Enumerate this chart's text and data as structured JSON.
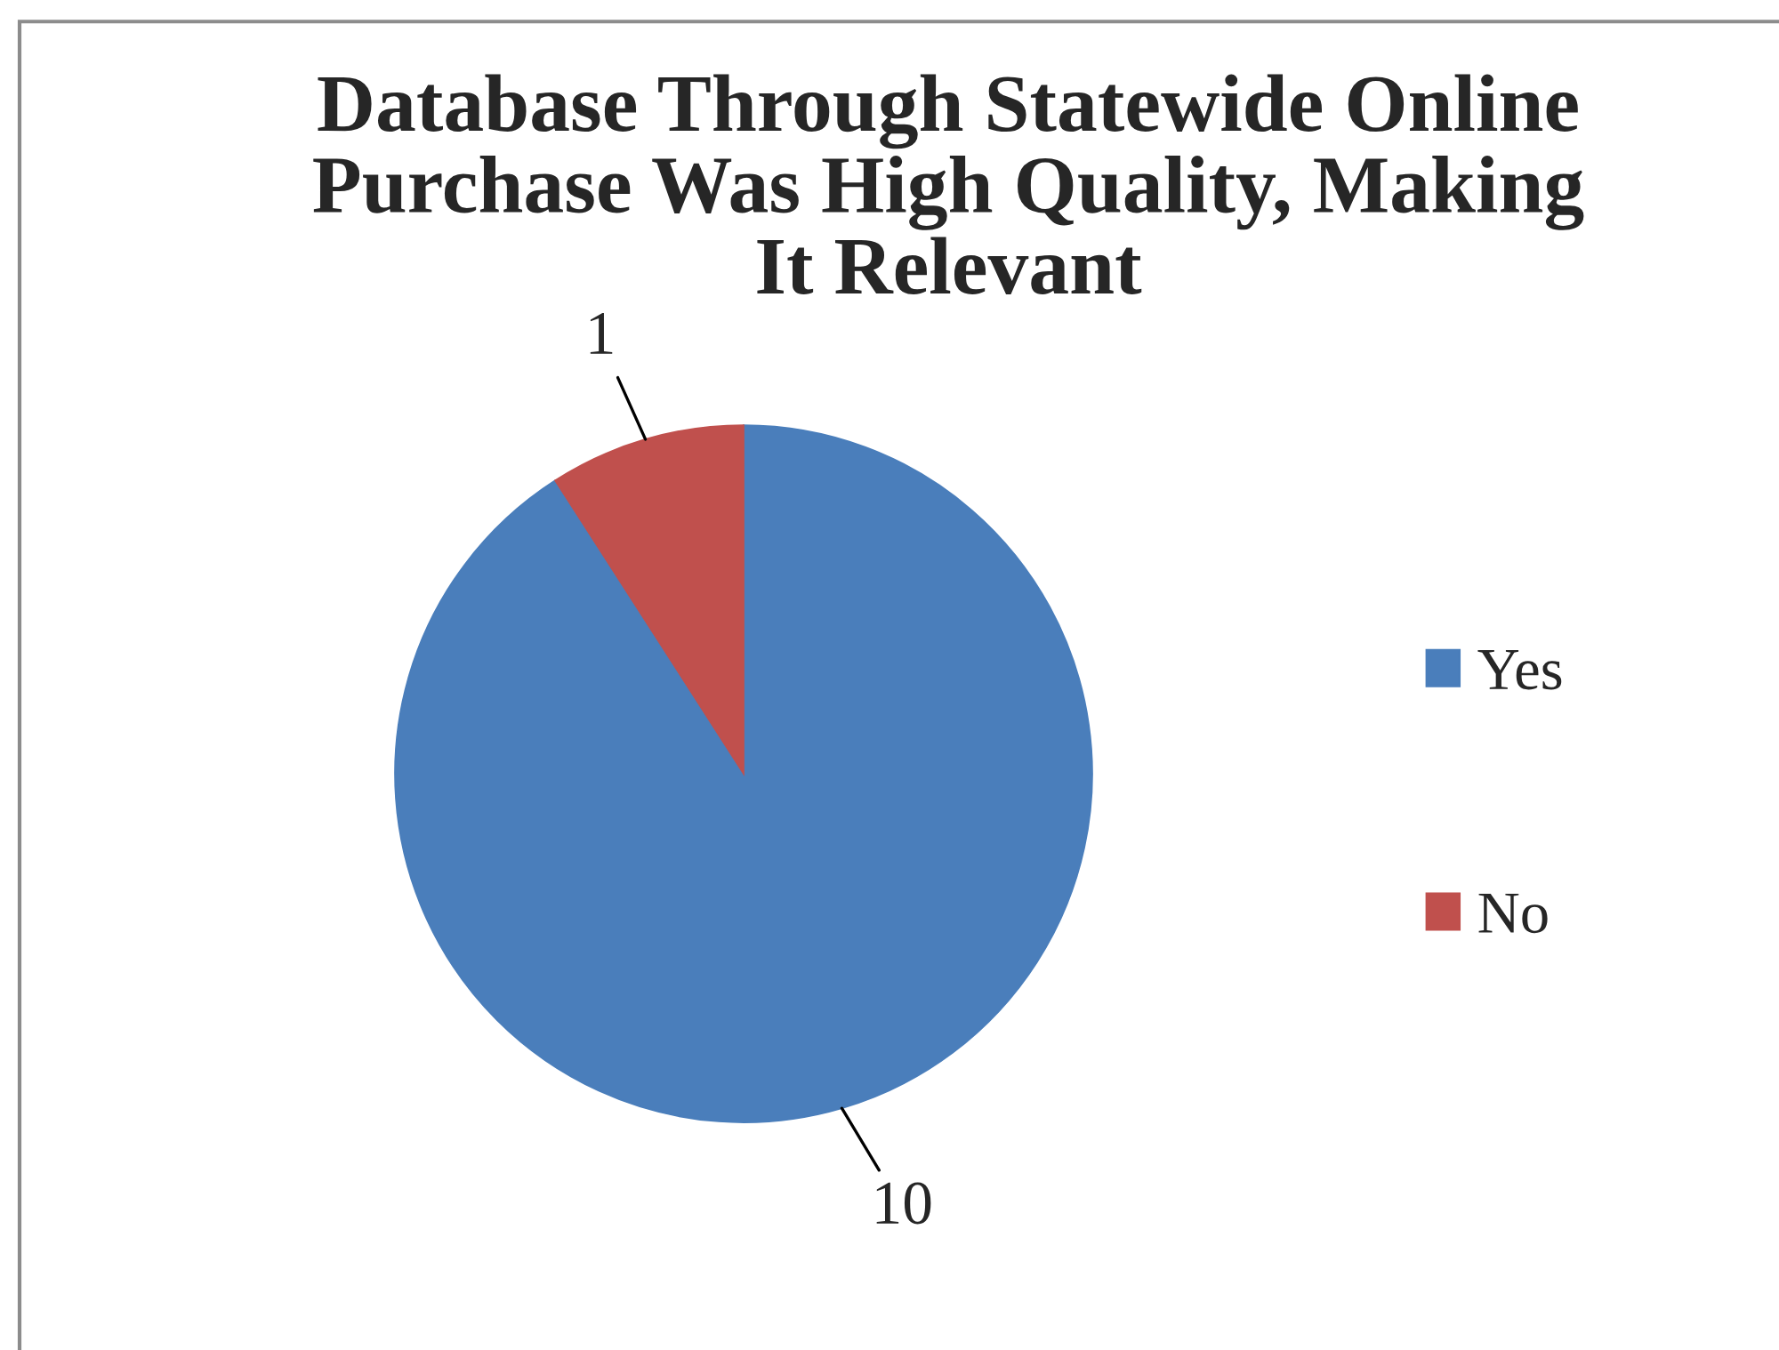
{
  "chart_data": {
    "type": "pie",
    "title": "Database Through Statewide Online\nPurchase Was High Quality, Making\nIt Relevant",
    "categories": [
      "Yes",
      "No"
    ],
    "values": [
      10,
      1
    ],
    "colors": [
      "#4a7ebb",
      "#c0504d"
    ],
    "data_labels": true,
    "legend": "right"
  }
}
